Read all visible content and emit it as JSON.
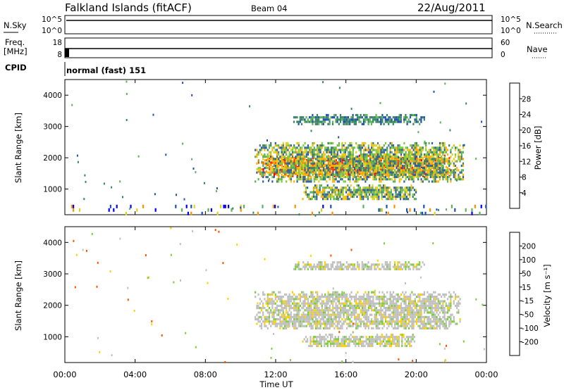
{
  "header": {
    "station": "Falkland Islands (fitACF)",
    "beam": "Beam 04",
    "date": "22/Aug/2011"
  },
  "strips": {
    "nsky_label": "N.Sky",
    "nsky_ticks": [
      "10^5",
      "10^0"
    ],
    "nsearch_label": "N.Search",
    "nsearch_ticks": [
      "10^5",
      "10^0"
    ],
    "freq_label_line1": "Freq.",
    "freq_label_line2": "[MHz]",
    "freq_ticks": [
      "18",
      "8"
    ],
    "nave_label": "Nave",
    "nave_ticks": [
      "60",
      "0"
    ],
    "cpid_label": "CPID",
    "cpid_value": "normal (fast) 151"
  },
  "chart_data": [
    {
      "type": "heatmap",
      "name": "power",
      "ylabel": "Slant Range [km]",
      "yticks": [
        "4000",
        "3000",
        "2000",
        "1000"
      ],
      "ylim": [
        180,
        4500
      ],
      "colorbar_label": "Power [dB]",
      "colorbar_ticks": [
        "28",
        "24",
        "20",
        "16",
        "12",
        "8",
        "4"
      ],
      "colorbar_colors": [
        "#0000ff",
        "#204fb0",
        "#3f7f6e",
        "#5fb25a",
        "#e0d020",
        "#ff9a00",
        "#ff5500",
        "#ff0000"
      ],
      "regions": [
        {
          "t0": 10.9,
          "t1": 21.9,
          "r0": 1450,
          "r1": 2100,
          "level": "high"
        },
        {
          "t0": 10.8,
          "t1": 22.7,
          "r0": 1250,
          "r1": 2500,
          "level": "mid"
        },
        {
          "t0": 13.5,
          "t1": 20.0,
          "r0": 700,
          "r1": 1150,
          "level": "mid"
        },
        {
          "t0": 13.0,
          "t1": 20.5,
          "r0": 3100,
          "r1": 3400,
          "level": "low"
        },
        {
          "t0": 0.0,
          "t1": 24.0,
          "r0": 180,
          "r1": 500,
          "level": "scatter"
        }
      ]
    },
    {
      "type": "heatmap",
      "name": "velocity",
      "ylabel": "Slant Range [km]",
      "yticks": [
        "4000",
        "3000",
        "2000",
        "1000"
      ],
      "ylim": [
        180,
        4500
      ],
      "colorbar_label": "Velocity [m s⁻¹]",
      "colorbar_ticks": [
        "200",
        "100",
        "50",
        "15",
        "-15",
        "-50",
        "-100",
        "-200"
      ],
      "colorbar_colors": [
        "#2040c0",
        "#3060a0",
        "#2e8b57",
        "#7ccd3c",
        "#c0c0c0",
        "#ffd000",
        "#ff9a00",
        "#ff5000",
        "#ff0000"
      ],
      "regions": [
        {
          "t0": 10.8,
          "t1": 22.5,
          "r0": 1250,
          "r1": 2450,
          "level": "gray"
        },
        {
          "t0": 13.5,
          "t1": 20.0,
          "r0": 700,
          "r1": 1100,
          "level": "gray"
        },
        {
          "t0": 13.0,
          "t1": 20.5,
          "r0": 3150,
          "r1": 3400,
          "level": "gray"
        }
      ]
    }
  ],
  "xaxis": {
    "ticks": [
      "00:00",
      "04:00",
      "08:00",
      "12:00",
      "16:00",
      "20:00",
      "00:00"
    ],
    "label": "Time UT"
  }
}
